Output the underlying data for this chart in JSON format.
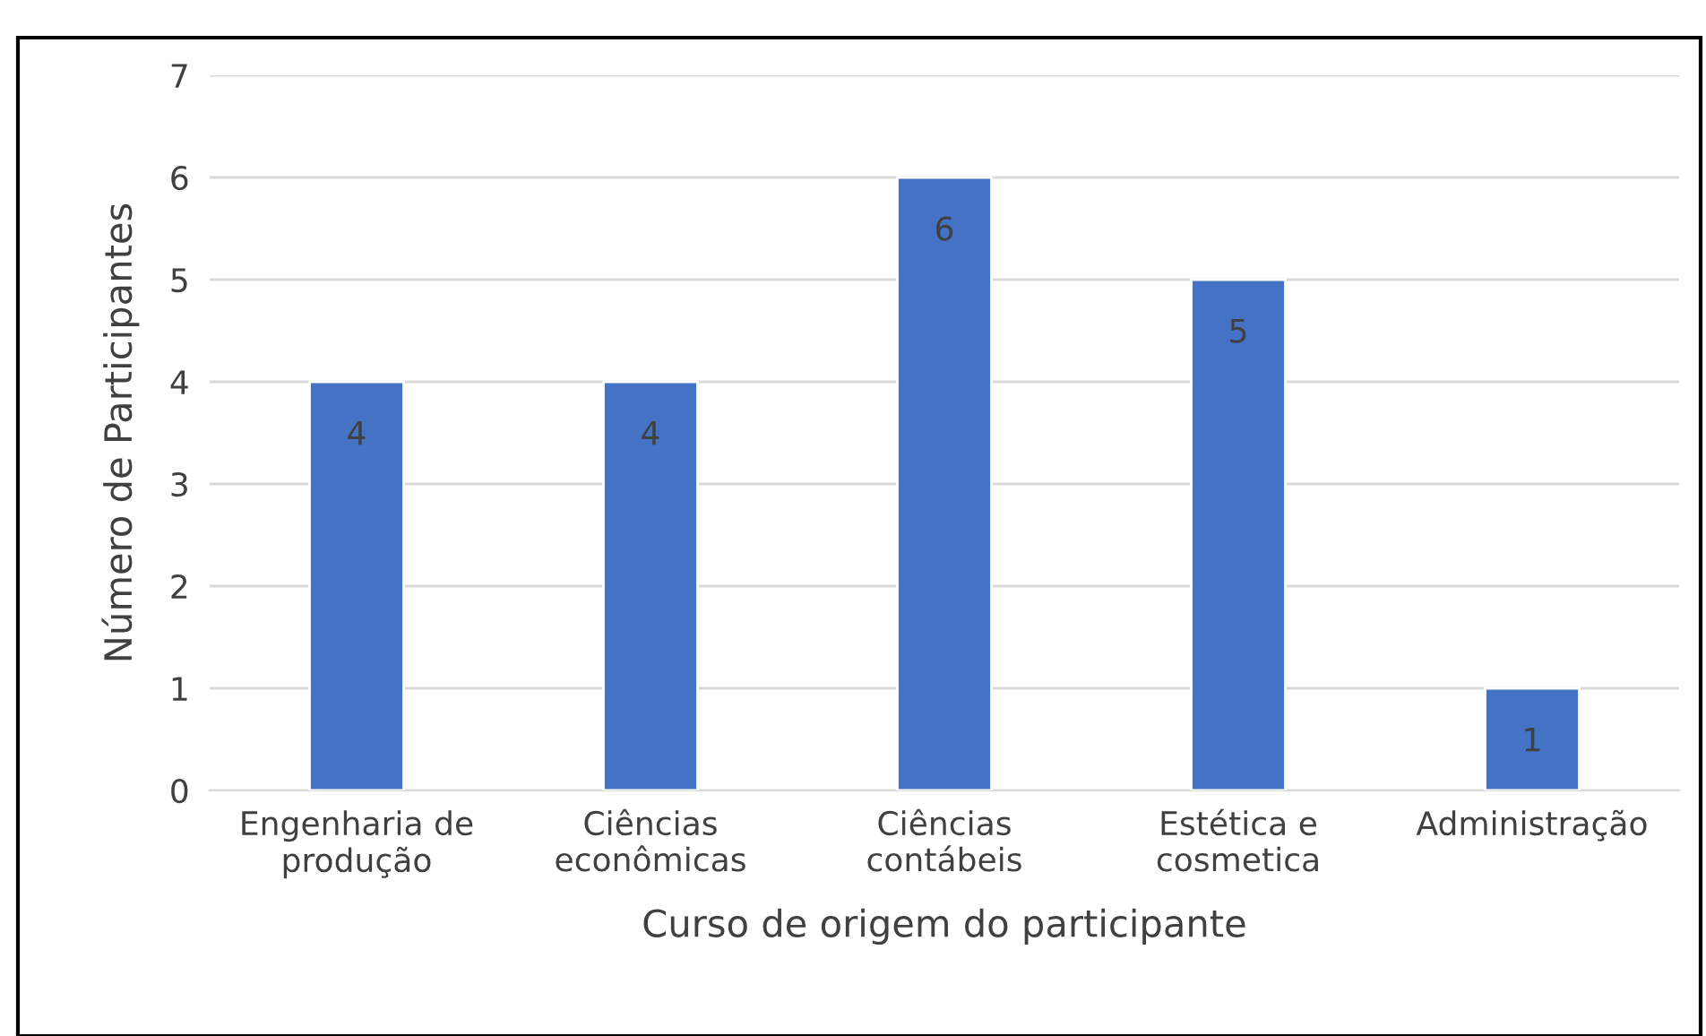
{
  "chart_data": {
    "type": "bar",
    "xlabel": "Curso de origem do participante",
    "ylabel": "Número de Participantes",
    "categories": [
      "Engenharia de\nprodução",
      "Ciências\neconômicas",
      "Ciências\ncontábeis",
      "Estética e\ncosmetica",
      "Administração"
    ],
    "values": [
      4,
      4,
      6,
      5,
      1
    ],
    "color": "#4472c4",
    "ylim": [
      0,
      7
    ],
    "yticks": [
      0,
      1,
      2,
      3,
      4,
      5,
      6,
      7
    ],
    "grid": "y",
    "data_labels": true
  }
}
